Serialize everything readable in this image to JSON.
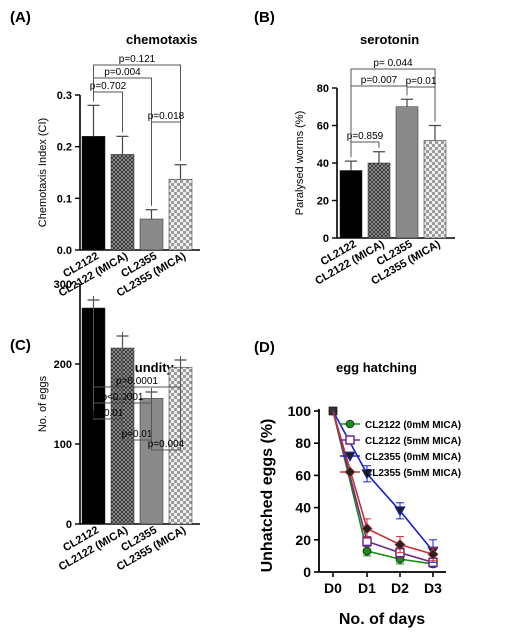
{
  "patterns": {
    "black": "#000000",
    "crosshatch_dark": "#3a3a3a",
    "gray": "#8a8a8a",
    "checker_light": "#cfcfcf"
  },
  "chart_data": [
    {
      "panel": "(A)",
      "title": "chemotaxis",
      "type": "bar",
      "ylabel": "Chemotaxis Index (CI)",
      "ylim": [
        0,
        0.3
      ],
      "yticks": [
        "0.0",
        "0.1",
        "0.2",
        "0.3"
      ],
      "categories": [
        "CL2122",
        "CL2122 (MICA)",
        "CL2355",
        "CL2355 (MICA)"
      ],
      "values": [
        0.22,
        0.185,
        0.06,
        0.137
      ],
      "errors": [
        0.06,
        0.035,
        0.018,
        0.028
      ],
      "fills": [
        "black",
        "crosshatch_dark",
        "gray",
        "checker_light"
      ],
      "annotations": [
        {
          "text": "p=0.121",
          "from": 0,
          "to": 3
        },
        {
          "text": "p=0.004",
          "from": 0,
          "to": 2
        },
        {
          "text": "p=0.702",
          "from": 0,
          "to": 1
        },
        {
          "text": "p=0.018",
          "from": 2,
          "to": 3
        }
      ]
    },
    {
      "panel": "(B)",
      "title": "serotonin",
      "type": "bar",
      "ylabel": "Paralysed worms (%)",
      "ylim": [
        0,
        80
      ],
      "yticks": [
        "0",
        "20",
        "40",
        "60",
        "80"
      ],
      "categories": [
        "CL2122",
        "CL2122 (MICA)",
        "CL2355",
        "CL2355 (MICA)"
      ],
      "values": [
        36,
        40,
        70,
        52
      ],
      "errors": [
        5,
        6,
        4,
        8
      ],
      "fills": [
        "black",
        "crosshatch_dark",
        "gray",
        "checker_light"
      ],
      "annotations": [
        {
          "text": "p= 0.044",
          "from": 0,
          "to": 3
        },
        {
          "text": "p=0.007",
          "from": 0,
          "to": 2
        },
        {
          "text": "p=0.01",
          "from": 2,
          "to": 3
        },
        {
          "text": "p=0.859",
          "from": 0,
          "to": 1
        }
      ]
    },
    {
      "panel": "(C)",
      "title": "fecundity",
      "type": "bar",
      "ylabel": "No. of eggs",
      "ylim": [
        0,
        300
      ],
      "yticks": [
        "0",
        "100",
        "200",
        "300"
      ],
      "categories": [
        "CL2122",
        "CL2122 (MICA)",
        "CL2355",
        "CL2355 (MICA)"
      ],
      "values": [
        270,
        220,
        157,
        196
      ],
      "errors": [
        10,
        15,
        8,
        9
      ],
      "fills": [
        "black",
        "crosshatch_dark",
        "gray",
        "checker_light"
      ],
      "annotations": [
        {
          "text": "p=0.0001",
          "from": 0,
          "to": 3
        },
        {
          "text": "p<0.0001",
          "from": 0,
          "to": 2
        },
        {
          "text": "p=0.01",
          "from": 0,
          "to": 1
        },
        {
          "text": "p=0.01",
          "from": 1,
          "to": 2
        },
        {
          "text": "p=0.004",
          "from": 2,
          "to": 3
        }
      ]
    },
    {
      "panel": "(D)",
      "title": "egg hatching",
      "type": "line",
      "xlabel": "No. of days",
      "ylabel": "Unhatched eggs (%)",
      "ylim": [
        0,
        100
      ],
      "yticks": [
        "0",
        "20",
        "40",
        "60",
        "80",
        "100"
      ],
      "categories": [
        "D0",
        "D1",
        "D2",
        "D3"
      ],
      "legend_position": "right",
      "series": [
        {
          "name": "CL2122 (0mM MICA)",
          "color": "#1a8a1a",
          "marker": "circle",
          "values": [
            100,
            13,
            8,
            5
          ],
          "errors": [
            0,
            3,
            3,
            2
          ]
        },
        {
          "name": "CL2122 (5mM MICA)",
          "color": "#6a2a8a",
          "marker": "square-open",
          "values": [
            100,
            19,
            12,
            6
          ],
          "errors": [
            0,
            3,
            3,
            2
          ]
        },
        {
          "name": "CL2355 (0mM MICA)",
          "color": "#1a22c8",
          "marker": "triangle-down",
          "values": [
            100,
            61,
            38,
            13
          ],
          "errors": [
            0,
            5,
            5,
            7
          ]
        },
        {
          "name": "CL2355 (5mM MICA)",
          "color": "#c83030",
          "marker": "diamond",
          "values": [
            100,
            27,
            17,
            11
          ],
          "errors": [
            0,
            6,
            5,
            4
          ]
        }
      ]
    }
  ]
}
